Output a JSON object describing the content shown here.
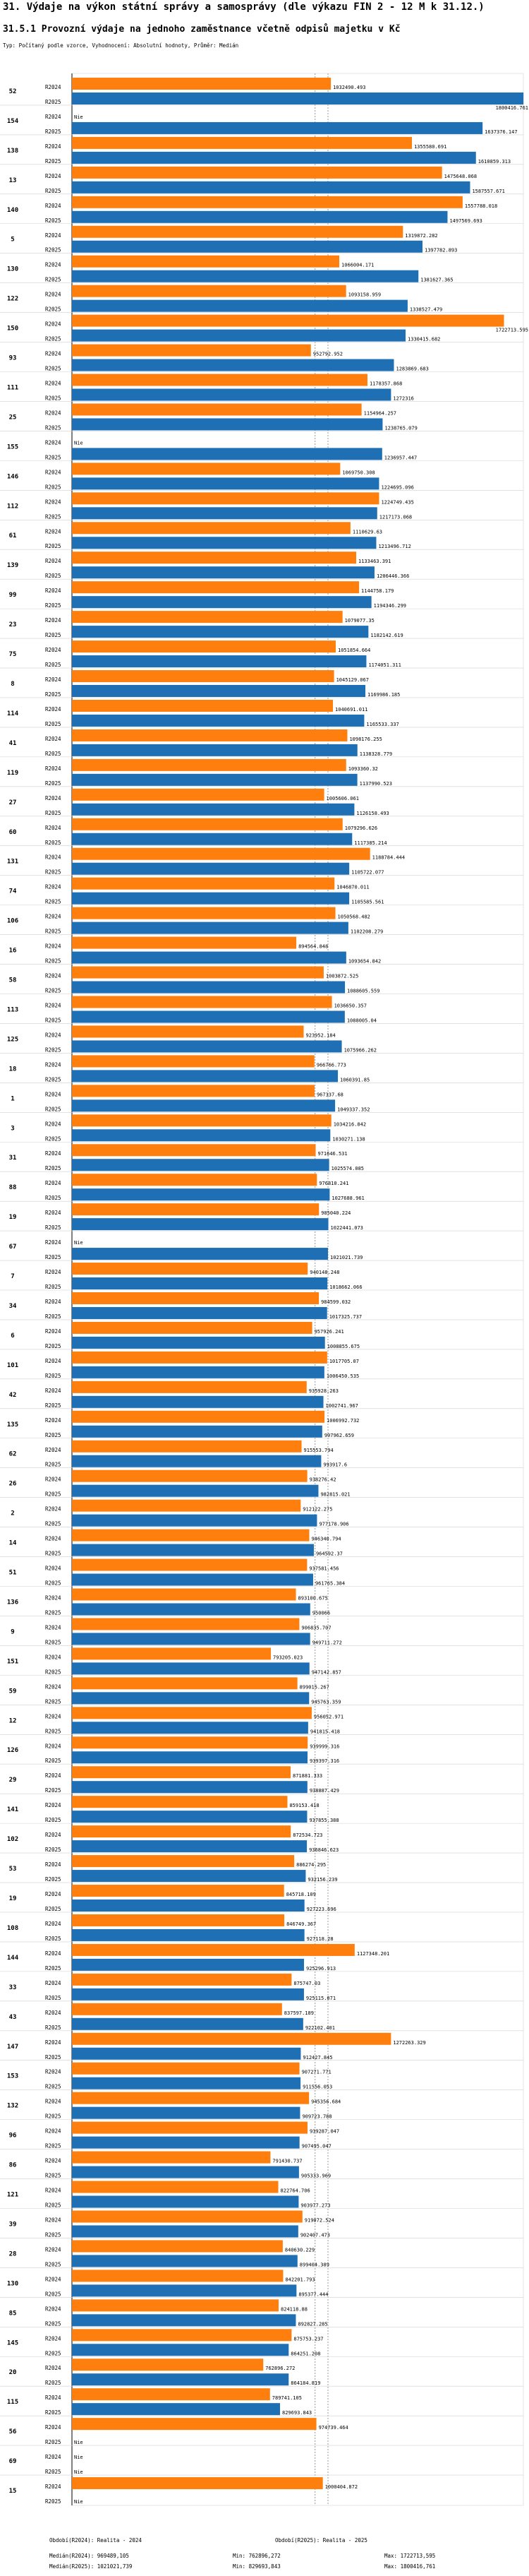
{
  "header": {
    "title": "31. Výdaje na výkon státní správy a samosprávy (dle výkazu FIN 2 - 12 M k 31.12.)",
    "subtitle": "31.5.1 Provozní výdaje na jednoho zaměstnance včetně odpisů majetku v Kč",
    "description": "Typ: Počítaný podle vzorce, Vyhodnocení: Absolutní hodnoty, Průměr: Medián"
  },
  "colors": {
    "r2024": "#ff7f0e",
    "r2025": "#1f6fb4",
    "grid": "#d0d0d0"
  },
  "chart_data": {
    "type": "bar",
    "orientation": "horizontal",
    "na_label": "Nie",
    "series": [
      {
        "key": "r2024",
        "name": "R2024"
      },
      {
        "key": "r2025",
        "name": "R2025"
      }
    ],
    "median_2024": 969489.105,
    "median_2025": 1021021.739,
    "xlim": [
      0,
      1800000
    ],
    "groups": [
      {
        "id": "52",
        "r2024": 1032490.493,
        "r2025": 1800416.761
      },
      {
        "id": "154",
        "r2024": null,
        "r2025": 1637376.147
      },
      {
        "id": "138",
        "r2024": 1355580.691,
        "r2025": 1610859.313
      },
      {
        "id": "13",
        "r2024": 1475648.068,
        "r2025": 1587557.671
      },
      {
        "id": "140",
        "r2024": 1557788.018,
        "r2025": 1497569.693
      },
      {
        "id": "5",
        "r2024": 1319872.282,
        "r2025": 1397782.893
      },
      {
        "id": "130",
        "r2024": 1066004.171,
        "r2025": 1381627.365
      },
      {
        "id": "122",
        "r2024": 1093158.959,
        "r2025": 1338527.479
      },
      {
        "id": "150",
        "r2024": 1722713.595,
        "r2025": 1330415.682
      },
      {
        "id": "93",
        "r2024": 952792.952,
        "r2025": 1283869.683
      },
      {
        "id": "111",
        "r2024": 1178357.868,
        "r2025": 1272316
      },
      {
        "id": "25",
        "r2024": 1154964.257,
        "r2025": 1238765.079
      },
      {
        "id": "155",
        "r2024": null,
        "r2025": 1236957.447
      },
      {
        "id": "146",
        "r2024": 1069750.308,
        "r2025": 1224695.096
      },
      {
        "id": "112",
        "r2024": 1224749.435,
        "r2025": 1217173.068
      },
      {
        "id": "61",
        "r2024": 1110629.63,
        "r2025": 1213496.712
      },
      {
        "id": "139",
        "r2024": 1133463.391,
        "r2025": 1206446.366
      },
      {
        "id": "99",
        "r2024": 1144758.179,
        "r2025": 1194346.299
      },
      {
        "id": "23",
        "r2024": 1079077.35,
        "r2025": 1182142.619
      },
      {
        "id": "75",
        "r2024": 1051854.664,
        "r2025": 1174051.311
      },
      {
        "id": "8",
        "r2024": 1045129.067,
        "r2025": 1169986.185
      },
      {
        "id": "114",
        "r2024": 1040691.011,
        "r2025": 1165533.337
      },
      {
        "id": "41",
        "r2024": 1098176.255,
        "r2025": 1138328.779
      },
      {
        "id": "119",
        "r2024": 1093360.32,
        "r2025": 1137990.523
      },
      {
        "id": "27",
        "r2024": 1005606.061,
        "r2025": 1126158.493
      },
      {
        "id": "60",
        "r2024": 1079296.626,
        "r2025": 1117385.214
      },
      {
        "id": "131",
        "r2024": 1188784.444,
        "r2025": 1105722.077
      },
      {
        "id": "74",
        "r2024": 1046870.011,
        "r2025": 1105585.561
      },
      {
        "id": "106",
        "r2024": 1050568.482,
        "r2025": 1102208.279
      },
      {
        "id": "16",
        "r2024": 894564.848,
        "r2025": 1093654.842
      },
      {
        "id": "58",
        "r2024": 1003872.525,
        "r2025": 1088605.559
      },
      {
        "id": "113",
        "r2024": 1036650.357,
        "r2025": 1088005.04
      },
      {
        "id": "125",
        "r2024": 923952.184,
        "r2025": 1075966.262
      },
      {
        "id": "18",
        "r2024": 966766.773,
        "r2025": 1060391.85
      },
      {
        "id": "1",
        "r2024": 967337.68,
        "r2025": 1049337.352
      },
      {
        "id": "3",
        "r2024": 1034216.842,
        "r2025": 1030271.138
      },
      {
        "id": "31",
        "r2024": 971646.531,
        "r2025": 1025574.085
      },
      {
        "id": "88",
        "r2024": 976810.241,
        "r2025": 1027688.961
      },
      {
        "id": "19",
        "r2024": 985040.224,
        "r2025": 1022441.073
      },
      {
        "id": "67",
        "r2024": null,
        "r2025": 1021021.739
      },
      {
        "id": "7",
        "r2024": 940148.248,
        "r2025": 1018662.066
      },
      {
        "id": "34",
        "r2024": 984599.032,
        "r2025": 1017325.737
      },
      {
        "id": "6",
        "r2024": 957926.241,
        "r2025": 1008855.675
      },
      {
        "id": "101",
        "r2024": 1017705.07,
        "r2025": 1006450.535
      },
      {
        "id": "42",
        "r2024": 935928.263,
        "r2025": 1002741.967
      },
      {
        "id": "135",
        "r2024": 1006992.732,
        "r2025": 997962.659
      },
      {
        "id": "62",
        "r2024": 915553.794,
        "r2025": 993917.6
      },
      {
        "id": "26",
        "r2024": 938276.42,
        "r2025": 982815.021
      },
      {
        "id": "2",
        "r2024": 912122.275,
        "r2025": 977178.906
      },
      {
        "id": "14",
        "r2024": 946340.794,
        "r2025": 964592.37
      },
      {
        "id": "51",
        "r2024": 937581.456,
        "r2025": 961765.384
      },
      {
        "id": "136",
        "r2024": 893100.675,
        "r2025": 950066
      },
      {
        "id": "9",
        "r2024": 906835.707,
        "r2025": 949711.272
      },
      {
        "id": "151",
        "r2024": 793205.023,
        "r2025": 947142.857
      },
      {
        "id": "59",
        "r2024": 899015.267,
        "r2025": 945763.359
      },
      {
        "id": "12",
        "r2024": 956052.971,
        "r2025": 941815.418
      },
      {
        "id": "126",
        "r2024": 939999.316,
        "r2025": 939397.316
      },
      {
        "id": "29",
        "r2024": 871881.333,
        "r2025": 938887.429
      },
      {
        "id": "141",
        "r2024": 859153.418,
        "r2025": 937855.388
      },
      {
        "id": "102",
        "r2024": 872534.723,
        "r2025": 936846.623
      },
      {
        "id": "53",
        "r2024": 886274.295,
        "r2025": 932156.239
      },
      {
        "id": "19b",
        "label": "19",
        "r2024": 845718.109,
        "r2025": 927223.696
      },
      {
        "id": "108",
        "r2024": 846749.367,
        "r2025": 927118.28
      },
      {
        "id": "144",
        "r2024": 1127348.201,
        "r2025": 925296.913
      },
      {
        "id": "33",
        "r2024": 875747.03,
        "r2025": 925115.071
      },
      {
        "id": "43",
        "r2024": 837597.189,
        "r2025": 922102.401
      },
      {
        "id": "147",
        "r2024": 1272263.329,
        "r2025": 912427.845
      },
      {
        "id": "153",
        "r2024": 907271.771,
        "r2025": 911556.053
      },
      {
        "id": "132",
        "r2024": 945356.684,
        "r2025": 909723.788
      },
      {
        "id": "96",
        "r2024": 939287.047,
        "r2025": 907495.047
      },
      {
        "id": "86",
        "r2024": 791430.737,
        "r2025": 905333.969
      },
      {
        "id": "121",
        "r2024": 822764.706,
        "r2025": 903977.273
      },
      {
        "id": "39",
        "r2024": 919072.524,
        "r2025": 902407.473
      },
      {
        "id": "28",
        "r2024": 840630.229,
        "r2025": 899404.389
      },
      {
        "id": "130b",
        "label": "130",
        "r2024": 842201.793,
        "r2025": 895377.444
      },
      {
        "id": "85",
        "r2024": 824118.88,
        "r2025": 892827.285
      },
      {
        "id": "145",
        "r2024": 875753.237,
        "r2025": 864251.208
      },
      {
        "id": "20",
        "r2024": 762896.272,
        "r2025": 864184.819
      },
      {
        "id": "115",
        "r2024": 789741.105,
        "r2025": 829693.843
      },
      {
        "id": "56",
        "r2024": 974739.464,
        "r2025": null
      },
      {
        "id": "69",
        "r2024": null,
        "r2025": null
      },
      {
        "id": "15",
        "r2024": 1000404.872,
        "r2025": null
      }
    ]
  },
  "footer": {
    "legend_2024": "Období(R2024): Realita - 2024",
    "legend_2025": "Období(R2025): Realita - 2025",
    "median_2024": "Medián(R2024): 969489,105",
    "median_2025": "Medián(R2025): 1021021,739",
    "min_2024": "Min: 762896,272",
    "min_2025": "Min: 829693,843",
    "max_2024": "Max: 1722713,595",
    "max_2025": "Max: 1800416,761"
  }
}
